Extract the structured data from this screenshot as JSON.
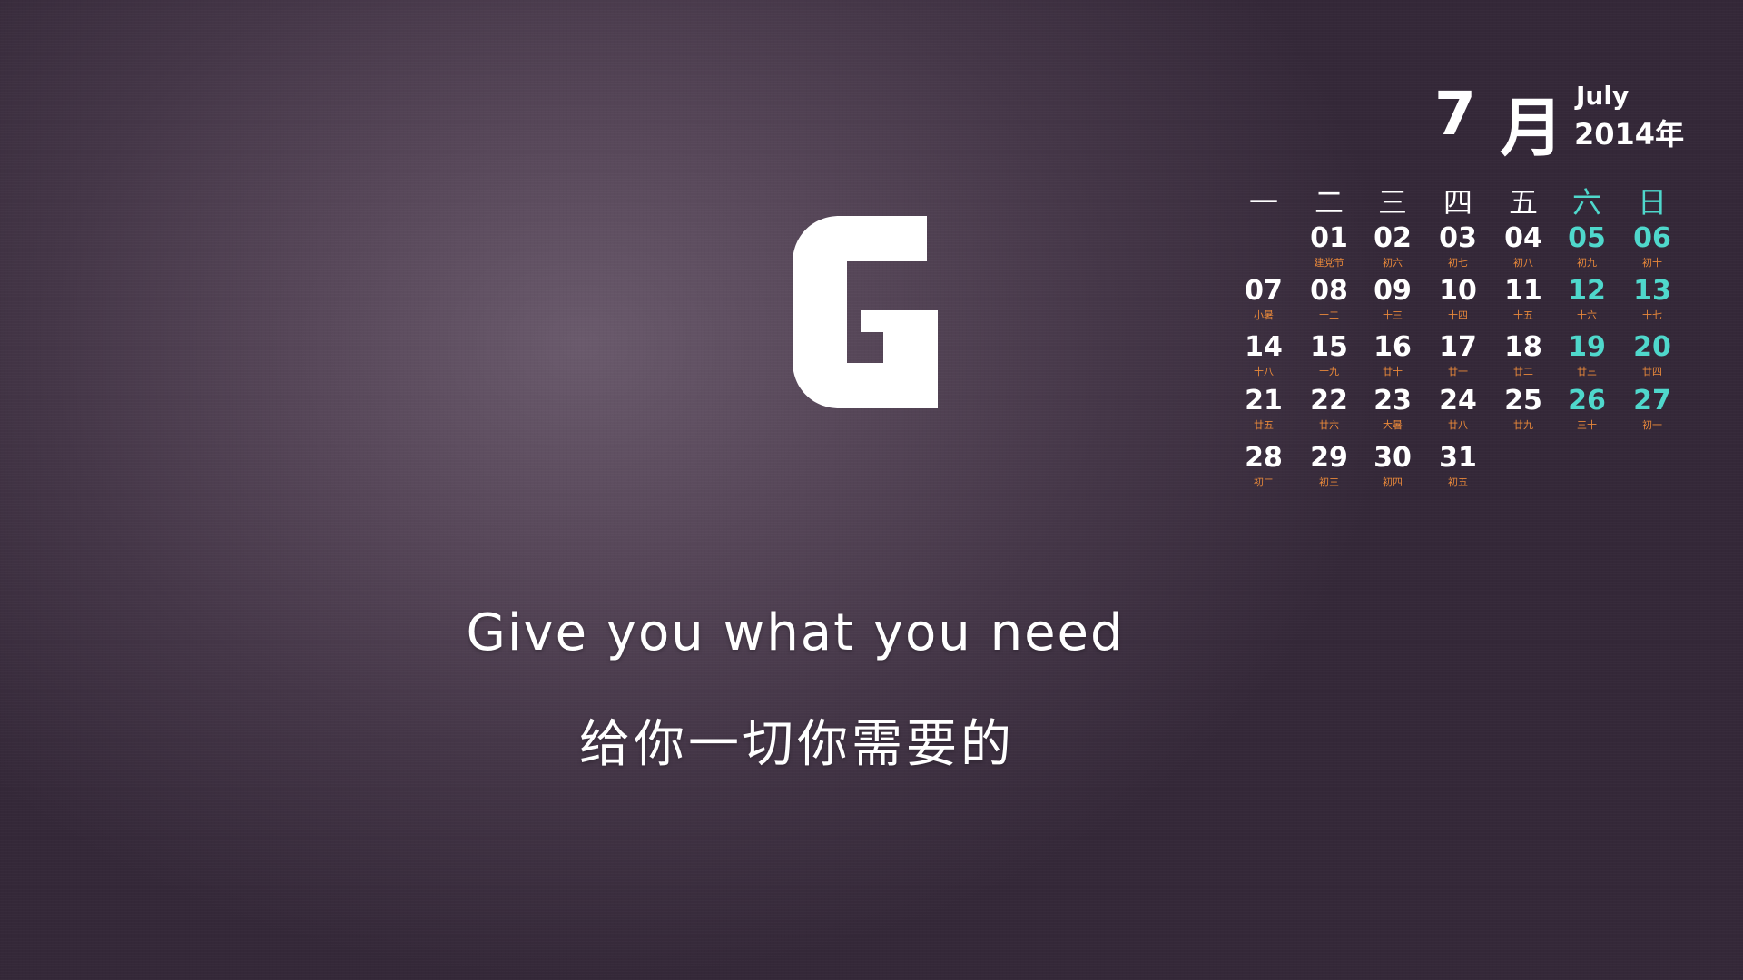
{
  "calendar": {
    "month_number": "7",
    "month_char": "月",
    "month_english": "July",
    "year": "2014年",
    "weekdays": [
      "一",
      "二",
      "三",
      "四",
      "五",
      "六",
      "日"
    ],
    "days": [
      {
        "n": "01",
        "lunar": "建党节",
        "col": 1,
        "row": 0
      },
      {
        "n": "02",
        "lunar": "初六",
        "col": 2,
        "row": 0
      },
      {
        "n": "03",
        "lunar": "初七",
        "col": 3,
        "row": 0
      },
      {
        "n": "04",
        "lunar": "初八",
        "col": 4,
        "row": 0
      },
      {
        "n": "05",
        "lunar": "初九",
        "col": 5,
        "row": 0
      },
      {
        "n": "06",
        "lunar": "初十",
        "col": 6,
        "row": 0
      },
      {
        "n": "07",
        "lunar": "小暑",
        "col": 0,
        "row": 1
      },
      {
        "n": "08",
        "lunar": "十二",
        "col": 1,
        "row": 1
      },
      {
        "n": "09",
        "lunar": "十三",
        "col": 2,
        "row": 1
      },
      {
        "n": "10",
        "lunar": "十四",
        "col": 3,
        "row": 1
      },
      {
        "n": "11",
        "lunar": "十五",
        "col": 4,
        "row": 1
      },
      {
        "n": "12",
        "lunar": "十六",
        "col": 5,
        "row": 1
      },
      {
        "n": "13",
        "lunar": "十七",
        "col": 6,
        "row": 1
      },
      {
        "n": "14",
        "lunar": "十八",
        "col": 0,
        "row": 2
      },
      {
        "n": "15",
        "lunar": "十九",
        "col": 1,
        "row": 2
      },
      {
        "n": "16",
        "lunar": "廿十",
        "col": 2,
        "row": 2
      },
      {
        "n": "17",
        "lunar": "廿一",
        "col": 3,
        "row": 2
      },
      {
        "n": "18",
        "lunar": "廿二",
        "col": 4,
        "row": 2
      },
      {
        "n": "19",
        "lunar": "廿三",
        "col": 5,
        "row": 2
      },
      {
        "n": "20",
        "lunar": "廿四",
        "col": 6,
        "row": 2
      },
      {
        "n": "21",
        "lunar": "廿五",
        "col": 0,
        "row": 3
      },
      {
        "n": "22",
        "lunar": "廿六",
        "col": 1,
        "row": 3
      },
      {
        "n": "23",
        "lunar": "大暑",
        "col": 2,
        "row": 3
      },
      {
        "n": "24",
        "lunar": "廿八",
        "col": 3,
        "row": 3
      },
      {
        "n": "25",
        "lunar": "廿九",
        "col": 4,
        "row": 3
      },
      {
        "n": "26",
        "lunar": "三十",
        "col": 5,
        "row": 3
      },
      {
        "n": "27",
        "lunar": "初一",
        "col": 6,
        "row": 3
      },
      {
        "n": "28",
        "lunar": "初二",
        "col": 0,
        "row": 4
      },
      {
        "n": "29",
        "lunar": "初三",
        "col": 1,
        "row": 4
      },
      {
        "n": "30",
        "lunar": "初四",
        "col": 2,
        "row": 4
      },
      {
        "n": "31",
        "lunar": "初五",
        "col": 3,
        "row": 4
      }
    ]
  },
  "tagline": {
    "english": "Give you what you need",
    "chinese": "给你一切你需要的"
  },
  "colors": {
    "weekend": "#4fd8cc",
    "lunar": "#e8883a",
    "text": "#ffffff"
  }
}
